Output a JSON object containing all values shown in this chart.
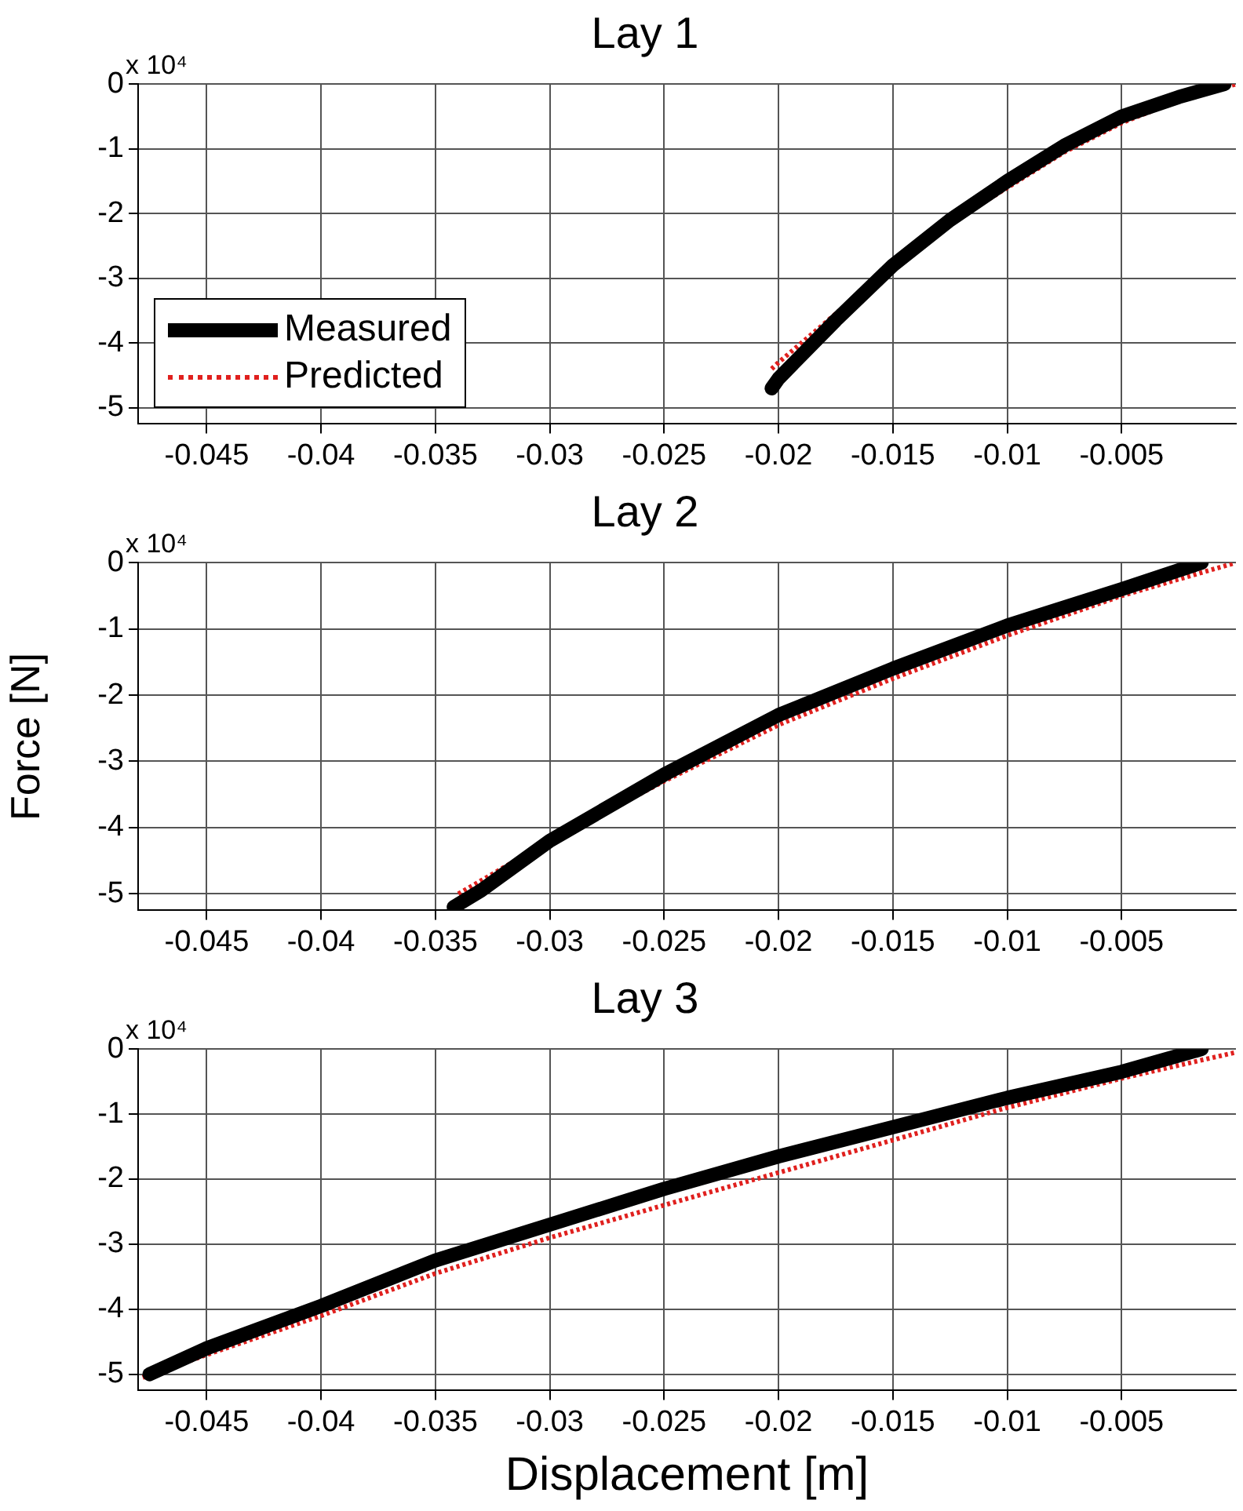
{
  "chart_data": [
    {
      "type": "line",
      "title": "Lay 1",
      "annotations": [
        "x 10⁴"
      ],
      "legend": "bottom left",
      "grid": true,
      "xlim": [
        -0.048,
        0
      ],
      "xticks": [
        -0.045,
        -0.04,
        -0.035,
        -0.03,
        -0.025,
        -0.02,
        -0.015,
        -0.01,
        -0.005
      ],
      "ylim": [
        -5.25,
        0
      ],
      "yticks": [
        -5,
        -4,
        -3,
        -2,
        -1,
        0
      ],
      "series": [
        {
          "name": "Measured",
          "color": "#000000",
          "line_style": "solid",
          "x": [
            -0.0203,
            -0.02,
            -0.0175,
            -0.015,
            -0.0125,
            -0.01,
            -0.0075,
            -0.005,
            -0.0025,
            -0.0005
          ],
          "values": [
            -4.7,
            -4.55,
            -3.65,
            -2.8,
            -2.1,
            -1.5,
            -0.95,
            -0.5,
            -0.2,
            0
          ]
        },
        {
          "name": "Predicted",
          "color": "#e0201e",
          "line_style": "dotted",
          "x": [
            -0.0203,
            -0.02,
            -0.0175,
            -0.015,
            -0.0125,
            -0.01,
            -0.0075,
            -0.005,
            -0.0025,
            0
          ],
          "values": [
            -4.4,
            -4.3,
            -3.55,
            -2.8,
            -2.15,
            -1.6,
            -1.05,
            -0.6,
            -0.25,
            0
          ]
        }
      ]
    },
    {
      "type": "line",
      "title": "Lay 2",
      "ylabel": "Force [N]",
      "annotations": [
        "x 10⁴"
      ],
      "grid": true,
      "xlim": [
        -0.048,
        0
      ],
      "xticks": [
        -0.045,
        -0.04,
        -0.035,
        -0.03,
        -0.025,
        -0.02,
        -0.015,
        -0.01,
        -0.005
      ],
      "ylim": [
        -5.25,
        0
      ],
      "yticks": [
        -5,
        -4,
        -3,
        -2,
        -1,
        0
      ],
      "series": [
        {
          "color": "#000000",
          "line_style": "solid",
          "x": [
            -0.0342,
            -0.033,
            -0.03,
            -0.025,
            -0.02,
            -0.015,
            -0.01,
            -0.005,
            -0.0015
          ],
          "values": [
            -5.2,
            -4.95,
            -4.2,
            -3.2,
            -2.3,
            -1.6,
            -0.95,
            -0.4,
            0
          ]
        },
        {
          "color": "#e0201e",
          "line_style": "dotted",
          "x": [
            -0.034,
            -0.033,
            -0.03,
            -0.025,
            -0.02,
            -0.015,
            -0.01,
            -0.005,
            0
          ],
          "values": [
            -5.0,
            -4.8,
            -4.2,
            -3.3,
            -2.45,
            -1.75,
            -1.1,
            -0.5,
            0
          ]
        }
      ]
    },
    {
      "type": "line",
      "title": "Lay 3",
      "xlabel": "Displacement [m]",
      "annotations": [
        "x 10⁴"
      ],
      "grid": true,
      "xlim": [
        -0.048,
        0
      ],
      "xticks": [
        -0.045,
        -0.04,
        -0.035,
        -0.03,
        -0.025,
        -0.02,
        -0.015,
        -0.01,
        -0.005
      ],
      "ylim": [
        -5.25,
        0
      ],
      "yticks": [
        -5,
        -4,
        -3,
        -2,
        -1,
        0
      ],
      "series": [
        {
          "color": "#000000",
          "line_style": "solid",
          "x": [
            -0.0475,
            -0.045,
            -0.04,
            -0.035,
            -0.03,
            -0.025,
            -0.02,
            -0.015,
            -0.01,
            -0.005,
            -0.0015
          ],
          "values": [
            -5.0,
            -4.6,
            -3.95,
            -3.25,
            -2.7,
            -2.15,
            -1.65,
            -1.2,
            -0.75,
            -0.35,
            0
          ]
        },
        {
          "color": "#e0201e",
          "line_style": "dotted",
          "x": [
            -0.0478,
            -0.045,
            -0.04,
            -0.035,
            -0.03,
            -0.025,
            -0.02,
            -0.015,
            -0.01,
            -0.005,
            0
          ],
          "values": [
            -5.05,
            -4.7,
            -4.1,
            -3.45,
            -2.9,
            -2.4,
            -1.9,
            -1.4,
            -0.9,
            -0.45,
            -0.05
          ]
        }
      ]
    }
  ]
}
